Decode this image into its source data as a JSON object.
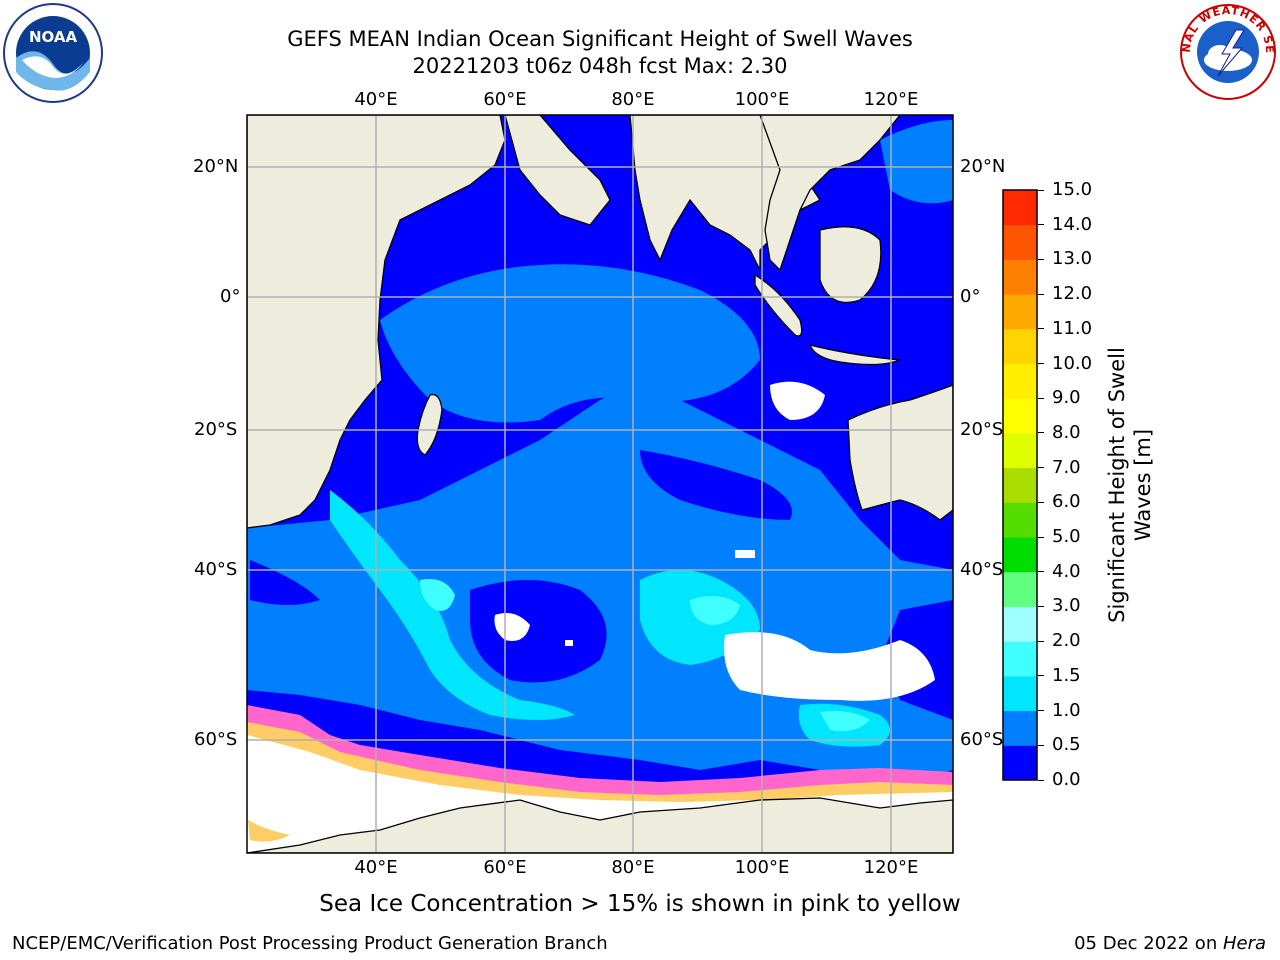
{
  "title": {
    "line1": "GEFS MEAN Indian Ocean Significant Height of Swell Waves",
    "line2": "20221203 t06z 048h fcst   Max: 2.30"
  },
  "map": {
    "lon_labels": [
      "40°E",
      "60°E",
      "80°E",
      "100°E",
      "120°E"
    ],
    "lat_labels": [
      "20°N",
      "0°",
      "20°S",
      "40°S",
      "60°S"
    ],
    "colors": {
      "land": "#eeecdd",
      "ice_free_missing": "#ffffff",
      "grid": "#b0b0b0",
      "coast": "#000000"
    }
  },
  "colorbar": {
    "label_line1": "Significant Height of Swell",
    "label_line2": "Waves [m]",
    "ticks": [
      "0.0",
      "0.5",
      "1.0",
      "1.5",
      "2.0",
      "3.0",
      "4.0",
      "5.0",
      "6.0",
      "7.0",
      "8.0",
      "9.0",
      "10.0",
      "11.0",
      "12.0",
      "13.0",
      "14.0",
      "15.0"
    ],
    "colors": [
      "#0000ff",
      "#0080ff",
      "#00e6ff",
      "#40ffff",
      "#a0ffff",
      "#60ff80",
      "#00dd00",
      "#55dd00",
      "#aadd00",
      "#ddff00",
      "#ffff00",
      "#ffee00",
      "#ffd400",
      "#ffaa00",
      "#ff8000",
      "#ff5500",
      "#ff2a00",
      "#ff0000"
    ]
  },
  "sea_ice_colors": [
    "#ff66cc",
    "#ff99cc",
    "#ffcc66",
    "#ffff99"
  ],
  "footnote": "Sea Ice Concentration > 15% is shown in pink to yellow",
  "footer": {
    "left": "NCEP/EMC/Verification Post Processing Product Generation Branch",
    "right_date": "05 Dec 2022 on ",
    "right_host": "Hera"
  },
  "logos": {
    "left": "NOAA",
    "right_text": "NATIONAL WEATHER SERVICE"
  }
}
